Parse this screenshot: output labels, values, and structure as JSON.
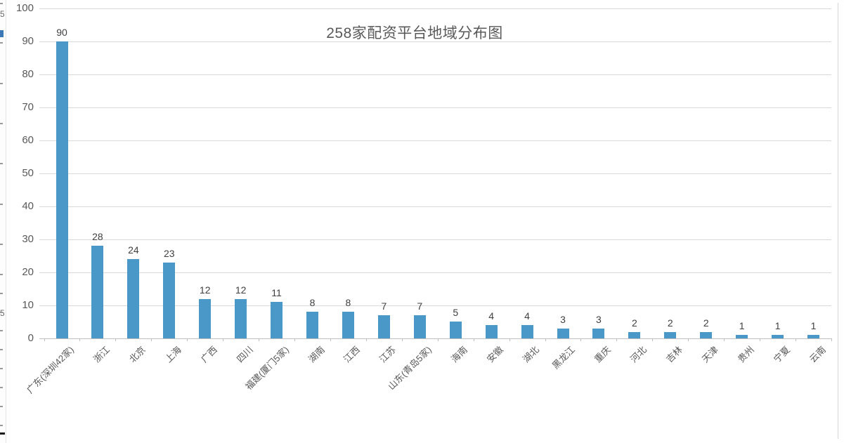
{
  "chart_data": {
    "type": "bar",
    "title": "258家配资平台地域分布图",
    "categories": [
      "广东(深圳42家)",
      "浙江",
      "北京",
      "上海",
      "广西",
      "四川",
      "福建(厦门5家)",
      "湖南",
      "江西",
      "江苏",
      "山东(青岛5家)",
      "海南",
      "安徽",
      "湖北",
      "黑龙江",
      "重庆",
      "河北",
      "吉林",
      "天津",
      "贵州",
      "宁夏",
      "云南"
    ],
    "values": [
      90,
      28,
      24,
      23,
      12,
      12,
      11,
      8,
      8,
      7,
      7,
      5,
      4,
      4,
      3,
      3,
      2,
      2,
      2,
      1,
      1,
      1
    ],
    "data_labels": [
      90,
      28,
      24,
      23,
      12,
      12,
      11,
      8,
      8,
      7,
      7,
      5,
      4,
      4,
      3,
      3,
      2,
      2,
      2,
      1,
      1,
      1
    ],
    "xlabel": "",
    "ylabel": "",
    "ylim": [
      0,
      100
    ],
    "yticks": [
      0,
      10,
      20,
      30,
      40,
      50,
      60,
      70,
      80,
      90,
      100
    ],
    "grid": true,
    "legend": "none",
    "bar_color": "#4a98c8",
    "gridline_color": "#d9d9d9",
    "axis_text_color": "#595959",
    "title_color": "#595959",
    "value_label_color": "#3f3f3f"
  },
  "artifacts": {
    "left_edge_partial_digit_top": "5",
    "left_edge_partial_digit_middle": "5"
  }
}
